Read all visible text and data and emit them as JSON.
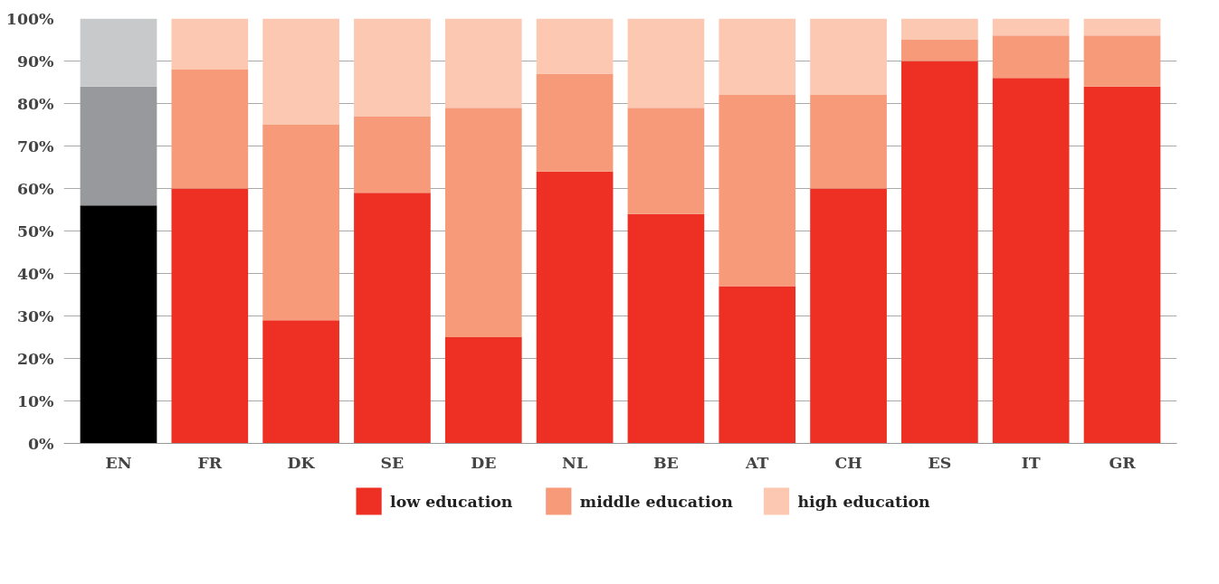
{
  "chart_data": {
    "type": "bar",
    "stacked": true,
    "categories": [
      "EN",
      "FR",
      "DK",
      "SE",
      "DE",
      "NL",
      "BE",
      "AT",
      "CH",
      "ES",
      "IT",
      "GR"
    ],
    "series": [
      {
        "name": "low education",
        "color": "#ee3024",
        "colors": [
          "#000000",
          "#ee3024",
          "#ee3024",
          "#ee3024",
          "#ee3024",
          "#ee3024",
          "#ee3024",
          "#ee3024",
          "#ee3024",
          "#ee3024",
          "#ee3024",
          "#ee3024"
        ],
        "values": [
          56,
          60,
          29,
          59,
          25,
          64,
          54,
          37,
          60,
          90,
          86,
          84
        ]
      },
      {
        "name": "middle education",
        "color": "#f69a7a",
        "colors": [
          "#98999d",
          "#f69a7a",
          "#f69a7a",
          "#f69a7a",
          "#f69a7a",
          "#f69a7a",
          "#f69a7a",
          "#f69a7a",
          "#f69a7a",
          "#f69a7a",
          "#f69a7a",
          "#f69a7a"
        ],
        "values": [
          28,
          28,
          46,
          18,
          54,
          23,
          25,
          45,
          22,
          5,
          10,
          12
        ]
      },
      {
        "name": "high education",
        "color": "#fcc8b2",
        "colors": [
          "#c8c9cb",
          "#fcc8b2",
          "#fcc8b2",
          "#fcc8b2",
          "#fcc8b2",
          "#fcc8b2",
          "#fcc8b2",
          "#fcc8b2",
          "#fcc8b2",
          "#fcc8b2",
          "#fcc8b2",
          "#fcc8b2"
        ],
        "values": [
          16,
          12,
          25,
          23,
          21,
          13,
          21,
          18,
          18,
          5,
          4,
          4
        ]
      }
    ],
    "ylim": [
      0,
      100
    ],
    "yticks": [
      {
        "value": 0,
        "label": "0%"
      },
      {
        "value": 10,
        "label": "10%"
      },
      {
        "value": 20,
        "label": "20%"
      },
      {
        "value": 30,
        "label": "30%"
      },
      {
        "value": 40,
        "label": "40%"
      },
      {
        "value": 50,
        "label": "50%"
      },
      {
        "value": 60,
        "label": "60%"
      },
      {
        "value": 70,
        "label": "70%"
      },
      {
        "value": 80,
        "label": "80%"
      },
      {
        "value": 90,
        "label": "90%"
      },
      {
        "value": 100,
        "label": "100%"
      }
    ],
    "grid": "y",
    "legend": "bottom"
  }
}
